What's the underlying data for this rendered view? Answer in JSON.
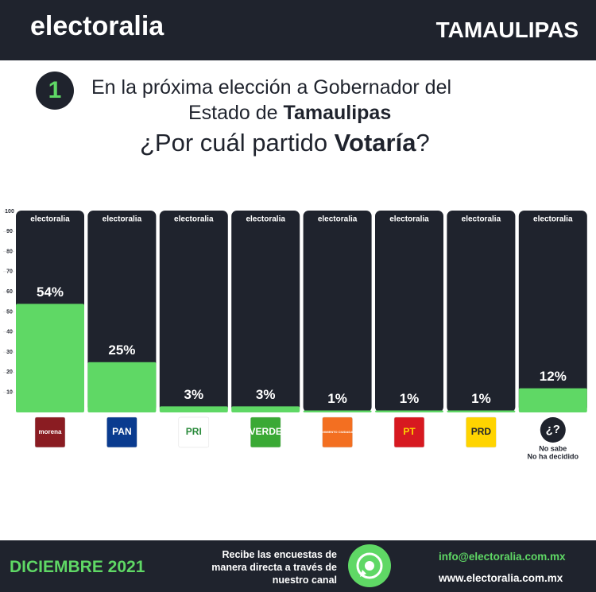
{
  "header": {
    "brand": "electoralia",
    "state": "TAMAULIPAS"
  },
  "question": {
    "number": "1",
    "line1": "En la próxima elección a Gobernador del",
    "line2": [
      "Estado de ",
      "Tamaulipas"
    ],
    "line3": [
      "¿Por cuál partido ",
      "Votaría",
      "?"
    ]
  },
  "chart_data": {
    "type": "bar",
    "categories": [
      "morena",
      "PAN",
      "PRI",
      "VERDE",
      "MOVIMIENTO CIUDADANO",
      "PT",
      "PRD",
      "¿?"
    ],
    "values": [
      54,
      25,
      3,
      3,
      1,
      1,
      1,
      12
    ],
    "value_labels": [
      "54%",
      "25%",
      "3%",
      "3%",
      "1%",
      "1%",
      "1%",
      "12%"
    ],
    "color": "#5fd865",
    "column_color": "#1f232d",
    "logo_colors": [
      "#8a1c22",
      "#0a3b8f",
      "#ffffff",
      "#3aa935",
      "#f36f21",
      "#d71920",
      "#ffd400",
      "#1f232d"
    ],
    "note": [
      "No sabe",
      "No ha decidido"
    ],
    "ylim": [
      0,
      100
    ],
    "yticks": [
      10,
      20,
      30,
      40,
      50,
      60,
      70,
      80,
      90,
      100
    ]
  },
  "footer": {
    "date": "DICIEMBRE 2021",
    "cta": [
      "Recibe las encuestas de",
      "manera directa a través de",
      "nuestro canal"
    ],
    "email": "info@electoralia.com.mx",
    "web": "www.electoralia.com.mx"
  }
}
